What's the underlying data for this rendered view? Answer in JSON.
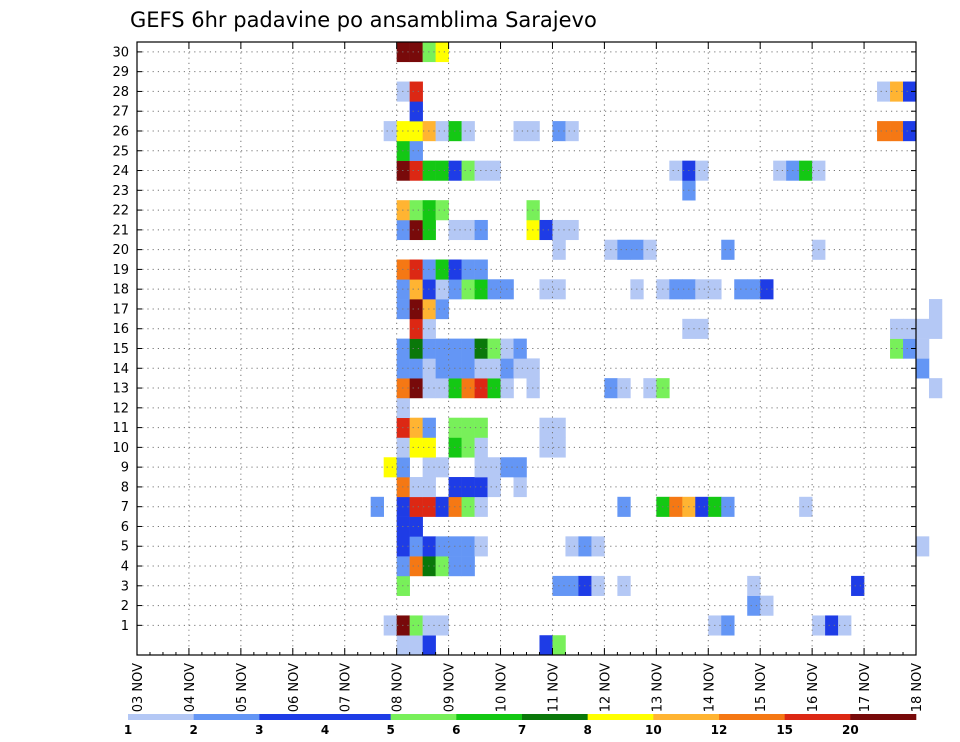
{
  "chart_data": {
    "type": "heatmap",
    "title": "GEFS 6hr padavine po ansamblima Sarajevo",
    "xlabel": "",
    "ylabel": "",
    "x_tick_labels": [
      "03 NOV",
      "04 NOV",
      "05 NOV",
      "06 NOV",
      "07 NOV",
      "08 NOV",
      "09 NOV",
      "10 NOV",
      "11 NOV",
      "12 NOV",
      "13 NOV",
      "14 NOV",
      "15 NOV",
      "16 NOV",
      "17 NOV",
      "18 NOV"
    ],
    "x_range_days": [
      3,
      18
    ],
    "step_hours": 6,
    "y_tick_labels": [
      "1",
      "2",
      "3",
      "4",
      "5",
      "6",
      "7",
      "8",
      "9",
      "10",
      "11",
      "12",
      "13",
      "14",
      "15",
      "16",
      "17",
      "18",
      "19",
      "20",
      "21",
      "22",
      "23",
      "24",
      "25",
      "26",
      "27",
      "28",
      "29",
      "30"
    ],
    "members": 31,
    "grid": "dotted",
    "colorbar": {
      "labels": [
        "1",
        "2",
        "3",
        "4",
        "5",
        "6",
        "7",
        "8",
        "10",
        "12",
        "15",
        "20"
      ],
      "colors": [
        "#b4c8f5",
        "#6496f5",
        "#1e3ce6",
        "#1e3ce6",
        "#78f05a",
        "#14c814",
        "#0a780a",
        "#ffff00",
        "#ffb432",
        "#f57814",
        "#dc2814",
        "#780a0a",
        "#780a0a"
      ]
    },
    "cells_format": "[member, step_index_from_03NOV_00Z, color_class_index]",
    "cells": [
      [
        0,
        20,
        0
      ],
      [
        0,
        21,
        0
      ],
      [
        0,
        22,
        3
      ],
      [
        0,
        31,
        2
      ],
      [
        0,
        32,
        4
      ],
      [
        1,
        19,
        0
      ],
      [
        1,
        20,
        11
      ],
      [
        1,
        21,
        4
      ],
      [
        1,
        22,
        0
      ],
      [
        1,
        23,
        0
      ],
      [
        1,
        44,
        0
      ],
      [
        1,
        45,
        1
      ],
      [
        1,
        52,
        0
      ],
      [
        1,
        53,
        3
      ],
      [
        1,
        54,
        0
      ],
      [
        2,
        47,
        1
      ],
      [
        2,
        48,
        0
      ],
      [
        3,
        20,
        4
      ],
      [
        3,
        32,
        1
      ],
      [
        3,
        33,
        1
      ],
      [
        3,
        34,
        2
      ],
      [
        3,
        35,
        0
      ],
      [
        3,
        37,
        0
      ],
      [
        3,
        47,
        0
      ],
      [
        3,
        55,
        3
      ],
      [
        4,
        20,
        1
      ],
      [
        4,
        21,
        9
      ],
      [
        4,
        22,
        6
      ],
      [
        4,
        23,
        4
      ],
      [
        4,
        24,
        1
      ],
      [
        4,
        25,
        1
      ],
      [
        5,
        20,
        3
      ],
      [
        5,
        21,
        1
      ],
      [
        5,
        22,
        3
      ],
      [
        5,
        23,
        1
      ],
      [
        5,
        24,
        1
      ],
      [
        5,
        25,
        1
      ],
      [
        5,
        26,
        0
      ],
      [
        5,
        33,
        0
      ],
      [
        5,
        34,
        1
      ],
      [
        5,
        35,
        0
      ],
      [
        5,
        60,
        0
      ],
      [
        6,
        20,
        3
      ],
      [
        6,
        21,
        3
      ],
      [
        7,
        18,
        1
      ],
      [
        7,
        20,
        3
      ],
      [
        7,
        21,
        10
      ],
      [
        7,
        22,
        10
      ],
      [
        7,
        23,
        3
      ],
      [
        7,
        24,
        9
      ],
      [
        7,
        25,
        4
      ],
      [
        7,
        26,
        0
      ],
      [
        7,
        37,
        1
      ],
      [
        7,
        40,
        5
      ],
      [
        7,
        41,
        9
      ],
      [
        7,
        42,
        8
      ],
      [
        7,
        43,
        3
      ],
      [
        7,
        44,
        5
      ],
      [
        7,
        45,
        1
      ],
      [
        7,
        51,
        0
      ],
      [
        8,
        20,
        9
      ],
      [
        8,
        21,
        0
      ],
      [
        8,
        22,
        0
      ],
      [
        8,
        24,
        3
      ],
      [
        8,
        25,
        3
      ],
      [
        8,
        26,
        3
      ],
      [
        8,
        27,
        0
      ],
      [
        8,
        29,
        0
      ],
      [
        9,
        19,
        7
      ],
      [
        9,
        20,
        1
      ],
      [
        9,
        22,
        0
      ],
      [
        9,
        23,
        0
      ],
      [
        9,
        26,
        0
      ],
      [
        9,
        27,
        0
      ],
      [
        9,
        28,
        1
      ],
      [
        9,
        29,
        1
      ],
      [
        10,
        20,
        0
      ],
      [
        10,
        21,
        7
      ],
      [
        10,
        22,
        7
      ],
      [
        10,
        24,
        5
      ],
      [
        10,
        25,
        4
      ],
      [
        10,
        26,
        0
      ],
      [
        10,
        31,
        0
      ],
      [
        10,
        32,
        0
      ],
      [
        11,
        20,
        10
      ],
      [
        11,
        21,
        8
      ],
      [
        11,
        22,
        1
      ],
      [
        11,
        24,
        4
      ],
      [
        11,
        25,
        4
      ],
      [
        11,
        26,
        4
      ],
      [
        11,
        31,
        0
      ],
      [
        11,
        32,
        0
      ],
      [
        12,
        20,
        0
      ],
      [
        13,
        20,
        9
      ],
      [
        13,
        21,
        11
      ],
      [
        13,
        22,
        0
      ],
      [
        13,
        23,
        0
      ],
      [
        13,
        24,
        5
      ],
      [
        13,
        25,
        9
      ],
      [
        13,
        26,
        10
      ],
      [
        13,
        27,
        5
      ],
      [
        13,
        28,
        0
      ],
      [
        13,
        30,
        0
      ],
      [
        13,
        36,
        1
      ],
      [
        13,
        37,
        0
      ],
      [
        13,
        39,
        0
      ],
      [
        13,
        40,
        4
      ],
      [
        13,
        61,
        0
      ],
      [
        14,
        20,
        1
      ],
      [
        14,
        21,
        1
      ],
      [
        14,
        22,
        0
      ],
      [
        14,
        23,
        1
      ],
      [
        14,
        24,
        1
      ],
      [
        14,
        25,
        1
      ],
      [
        14,
        26,
        0
      ],
      [
        14,
        27,
        0
      ],
      [
        14,
        28,
        1
      ],
      [
        14,
        29,
        0
      ],
      [
        14,
        30,
        0
      ],
      [
        14,
        60,
        1
      ],
      [
        15,
        20,
        1
      ],
      [
        15,
        21,
        6
      ],
      [
        15,
        22,
        1
      ],
      [
        15,
        23,
        1
      ],
      [
        15,
        24,
        1
      ],
      [
        15,
        25,
        1
      ],
      [
        15,
        26,
        6
      ],
      [
        15,
        27,
        4
      ],
      [
        15,
        28,
        0
      ],
      [
        15,
        29,
        1
      ],
      [
        15,
        58,
        4
      ],
      [
        15,
        59,
        1
      ],
      [
        15,
        60,
        0
      ],
      [
        16,
        21,
        10
      ],
      [
        16,
        22,
        0
      ],
      [
        16,
        42,
        0
      ],
      [
        16,
        43,
        0
      ],
      [
        16,
        58,
        0
      ],
      [
        16,
        59,
        0
      ],
      [
        16,
        60,
        0
      ],
      [
        16,
        61,
        0
      ],
      [
        17,
        20,
        1
      ],
      [
        17,
        21,
        11
      ],
      [
        17,
        22,
        8
      ],
      [
        17,
        23,
        1
      ],
      [
        17,
        61,
        0
      ],
      [
        18,
        20,
        1
      ],
      [
        18,
        21,
        8
      ],
      [
        18,
        22,
        3
      ],
      [
        18,
        23,
        0
      ],
      [
        18,
        24,
        1
      ],
      [
        18,
        25,
        4
      ],
      [
        18,
        26,
        5
      ],
      [
        18,
        27,
        1
      ],
      [
        18,
        28,
        1
      ],
      [
        18,
        31,
        0
      ],
      [
        18,
        32,
        0
      ],
      [
        18,
        38,
        0
      ],
      [
        18,
        40,
        0
      ],
      [
        18,
        41,
        1
      ],
      [
        18,
        42,
        1
      ],
      [
        18,
        43,
        0
      ],
      [
        18,
        44,
        0
      ],
      [
        18,
        46,
        1
      ],
      [
        18,
        47,
        1
      ],
      [
        18,
        48,
        3
      ],
      [
        19,
        20,
        9
      ],
      [
        19,
        21,
        10
      ],
      [
        19,
        22,
        1
      ],
      [
        19,
        23,
        5
      ],
      [
        19,
        24,
        3
      ],
      [
        19,
        25,
        1
      ],
      [
        19,
        26,
        1
      ],
      [
        20,
        32,
        0
      ],
      [
        20,
        36,
        0
      ],
      [
        20,
        37,
        1
      ],
      [
        20,
        38,
        1
      ],
      [
        20,
        39,
        0
      ],
      [
        20,
        45,
        1
      ],
      [
        20,
        52,
        0
      ],
      [
        21,
        20,
        1
      ],
      [
        21,
        21,
        11
      ],
      [
        21,
        22,
        5
      ],
      [
        21,
        24,
        0
      ],
      [
        21,
        25,
        0
      ],
      [
        21,
        26,
        1
      ],
      [
        21,
        30,
        7
      ],
      [
        21,
        31,
        3
      ],
      [
        21,
        32,
        0
      ],
      [
        21,
        33,
        0
      ],
      [
        22,
        20,
        8
      ],
      [
        22,
        21,
        4
      ],
      [
        22,
        22,
        5
      ],
      [
        22,
        23,
        4
      ],
      [
        22,
        30,
        4
      ],
      [
        23,
        42,
        1
      ],
      [
        24,
        20,
        11
      ],
      [
        24,
        21,
        10
      ],
      [
        24,
        22,
        5
      ],
      [
        24,
        23,
        5
      ],
      [
        24,
        24,
        3
      ],
      [
        24,
        25,
        4
      ],
      [
        24,
        26,
        0
      ],
      [
        24,
        27,
        0
      ],
      [
        24,
        41,
        0
      ],
      [
        24,
        42,
        3
      ],
      [
        24,
        43,
        0
      ],
      [
        24,
        49,
        0
      ],
      [
        24,
        50,
        1
      ],
      [
        24,
        51,
        5
      ],
      [
        24,
        52,
        0
      ],
      [
        25,
        20,
        5
      ],
      [
        25,
        21,
        1
      ],
      [
        26,
        19,
        0
      ],
      [
        26,
        20,
        7
      ],
      [
        26,
        21,
        7
      ],
      [
        26,
        22,
        8
      ],
      [
        26,
        23,
        0
      ],
      [
        26,
        24,
        5
      ],
      [
        26,
        25,
        0
      ],
      [
        26,
        29,
        0
      ],
      [
        26,
        30,
        0
      ],
      [
        26,
        32,
        1
      ],
      [
        26,
        33,
        0
      ],
      [
        26,
        57,
        9
      ],
      [
        26,
        58,
        9
      ],
      [
        26,
        59,
        3
      ],
      [
        27,
        21,
        3
      ],
      [
        28,
        20,
        0
      ],
      [
        28,
        21,
        10
      ],
      [
        28,
        57,
        0
      ],
      [
        28,
        58,
        8
      ],
      [
        28,
        59,
        3
      ],
      [
        30,
        20,
        11
      ],
      [
        30,
        21,
        11
      ],
      [
        30,
        22,
        4
      ],
      [
        30,
        23,
        7
      ]
    ]
  }
}
